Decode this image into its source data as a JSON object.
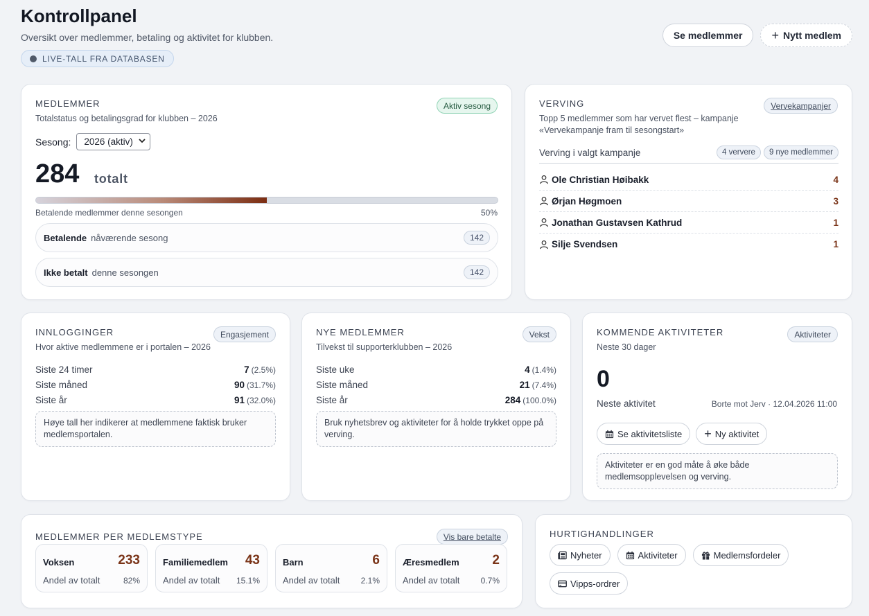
{
  "header": {
    "title": "Kontrollpanel",
    "subtitle": "Oversikt over medlemmer, betaling og aktivitet for klubben.",
    "live_badge": "LIVE-TALL FRA DATABASEN",
    "btn_members": "Se medlemmer",
    "btn_new_member": "Nytt medlem"
  },
  "members": {
    "label": "MEDLEMMER",
    "subtitle": "Totalstatus og betalingsgrad for klubben – 2026",
    "badge": "Aktiv sesong",
    "season_label": "Sesong:",
    "season_value": "2026 (aktiv)",
    "total": "284",
    "total_suffix": "totalt",
    "progress_caption": "Betalende medlemmer denne sesongen",
    "progress_percent": "50%",
    "progress_fraction": 0.5,
    "paying_label": "Betalende",
    "paying_sub": "nåværende sesong",
    "paying_count": "142",
    "unpaid_label": "Ikke betalt",
    "unpaid_sub": "denne sesongen",
    "unpaid_count": "142"
  },
  "recruit": {
    "label": "VERVING",
    "badge": "Vervekampanjer",
    "subtitle_line1": "Topp 5 medlemmer som har vervet flest – kampanje",
    "subtitle_line2": "«Vervekampanje fram til sesongstart»",
    "head_label": "Verving i valgt kampanje",
    "recruiters_badge": "4 ververe",
    "new_members_badge": "9 nye medlemmer",
    "items": [
      {
        "name": "Ole Christian Høibakk",
        "count": "4"
      },
      {
        "name": "Ørjan Høgmoen",
        "count": "3"
      },
      {
        "name": "Jonathan Gustavsen Kathrud",
        "count": "1"
      },
      {
        "name": "Silje Svendsen",
        "count": "1"
      }
    ]
  },
  "logins": {
    "label": "INNLOGGINGER",
    "badge": "Engasjement",
    "subtitle": "Hvor aktive medlemmene er i portalen – 2026",
    "rows": [
      {
        "label": "Siste 24 timer",
        "value": "7",
        "pct": "(2.5%)"
      },
      {
        "label": "Siste måned",
        "value": "90",
        "pct": "(31.7%)"
      },
      {
        "label": "Siste år",
        "value": "91",
        "pct": "(32.0%)"
      }
    ],
    "hint": "Høye tall her indikerer at medlemmene faktisk bruker medlemsportalen."
  },
  "new_members": {
    "label": "NYE MEDLEMMER",
    "badge": "Vekst",
    "subtitle": "Tilvekst til supporterklubben – 2026",
    "rows": [
      {
        "label": "Siste uke",
        "value": "4",
        "pct": "(1.4%)"
      },
      {
        "label": "Siste måned",
        "value": "21",
        "pct": "(7.4%)"
      },
      {
        "label": "Siste år",
        "value": "284",
        "pct": "(100.0%)"
      }
    ],
    "hint": "Bruk nyhetsbrev og aktiviteter for å holde trykket oppe på verving."
  },
  "upcoming": {
    "label": "KOMMENDE AKTIVITETER",
    "badge": "Aktiviteter",
    "subtitle": "Neste 30 dager",
    "count": "0",
    "next_label": "Neste aktivitet",
    "next_value": "Borte mot Jerv · 12.04.2026 11:00",
    "btn_list": "Se aktivitetsliste",
    "btn_new": "Ny aktivitet",
    "hint": "Aktiviteter er en god måte å øke både medlemsopplevelsen og verving."
  },
  "member_types": {
    "label": "MEDLEMMER PER MEDLEMSTYPE",
    "badge": "Vis bare betalte",
    "share_label": "Andel av totalt",
    "types": [
      {
        "name": "Voksen",
        "count": "233",
        "share": "82%"
      },
      {
        "name": "Familiemedlem",
        "count": "43",
        "share": "15.1%"
      },
      {
        "name": "Barn",
        "count": "6",
        "share": "2.1%"
      },
      {
        "name": "Æresmedlem",
        "count": "2",
        "share": "0.7%"
      }
    ]
  },
  "quick": {
    "label": "HURTIGHANDLINGER",
    "news": "Nyheter",
    "activities": "Aktiviteter",
    "benefits": "Medlemsfordeler",
    "vipps": "Vipps-ordrer"
  },
  "colors": {
    "accent_brown": "#7a3418",
    "green_badge": "#e6f6ee"
  }
}
